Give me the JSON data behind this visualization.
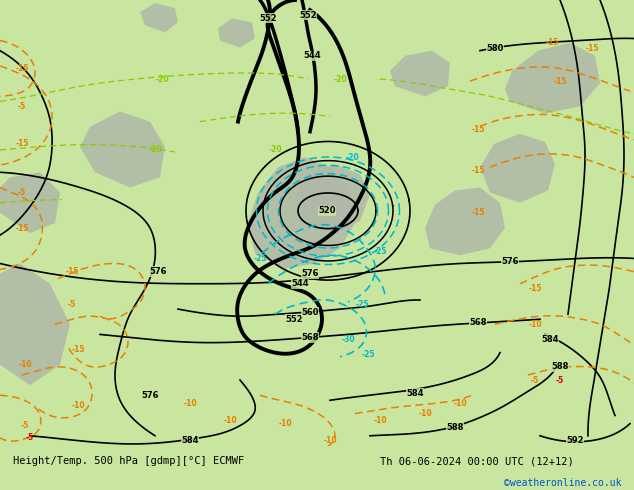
{
  "title_left": "Height/Temp. 500 hPa [gdmp][°C] ECMWF",
  "title_right": "Th 06-06-2024 00:00 UTC (12+12)",
  "credit": "©weatheronline.co.uk",
  "bg_color": "#c8e6a0",
  "gray_color": "#b0b8a8",
  "white_color": "#ffffff",
  "black": "#000000",
  "orange": "#e88000",
  "cyan": "#00b8c8",
  "yellow_green": "#88cc00",
  "red": "#e00000",
  "credit_color": "#0055cc",
  "figsize": [
    6.34,
    4.9
  ],
  "dpi": 100
}
